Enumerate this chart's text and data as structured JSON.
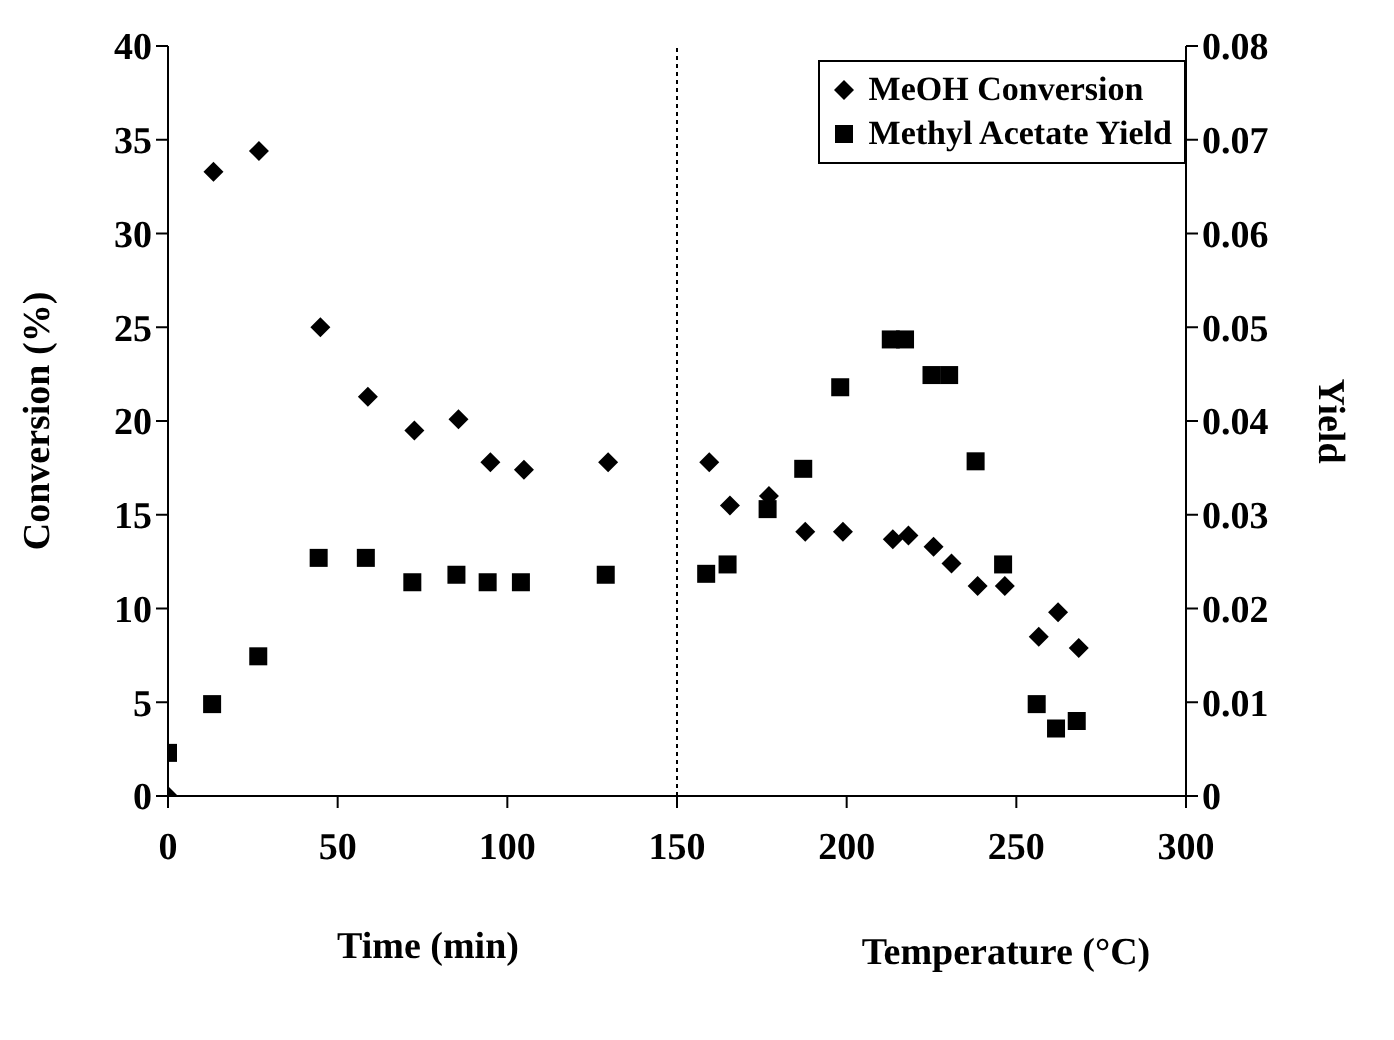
{
  "chart_data": {
    "type": "scatter",
    "xlabel": "Time (min)",
    "ylabel": "Conversion (%)",
    "y2label": "Yield",
    "annotations": [
      "Temperature (°C)"
    ],
    "xlim": [
      0,
      300
    ],
    "xticks": [
      0,
      50,
      100,
      150,
      200,
      250,
      300
    ],
    "ylim": [
      0,
      40
    ],
    "yticks": [
      0,
      5,
      10,
      15,
      20,
      25,
      30,
      35,
      40
    ],
    "y2lim": [
      0,
      0.08
    ],
    "y2ticks": [
      0,
      0.01,
      0.02,
      0.03,
      0.04,
      0.05,
      0.06,
      0.07,
      0.08
    ],
    "grid": false,
    "legend": "top right",
    "ref_lines": [
      {
        "axis": "x",
        "value": 150,
        "line_style": "dotted",
        "color": "#000000"
      }
    ],
    "series": [
      {
        "name": "MeOH Conversion",
        "color": "#000000",
        "marker": "diamond",
        "x": [
          0,
          13.4,
          26.8,
          44.9,
          58.9,
          72.6,
          85.6,
          95,
          104.9,
          129.7,
          159.5,
          165.6,
          177.1,
          187.8,
          198.9,
          213.6,
          218.2,
          225.6,
          230.9,
          238.6,
          246.6,
          256.6,
          262.3,
          268.4
        ],
        "values": [
          0,
          33.3,
          34.4,
          25.0,
          21.3,
          19.5,
          20.1,
          17.8,
          17.4,
          17.8,
          17.8,
          15.5,
          16.0,
          14.1,
          14.1,
          13.7,
          13.9,
          13.3,
          12.4,
          11.2,
          11.2,
          8.5,
          9.8,
          7.9
        ]
      },
      {
        "name": "Methyl Acetate Yield",
        "color": "#000000",
        "marker": "square",
        "axis": "y2",
        "x": [
          0,
          13.0,
          26.6,
          44.4,
          58.3,
          72.0,
          85.0,
          94.2,
          104,
          129,
          158.6,
          164.9,
          176.7,
          187.2,
          198.1,
          213,
          217.2,
          225,
          230.2,
          238,
          246.1,
          256,
          261.7,
          267.8
        ],
        "values": [
          0.0046,
          0.0098,
          0.0149,
          0.0254,
          0.0254,
          0.0228,
          0.0236,
          0.0228,
          0.0228,
          0.0236,
          0.0237,
          0.0247,
          0.0306,
          0.0349,
          0.0436,
          0.0487,
          0.0487,
          0.0449,
          0.0449,
          0.0357,
          0.0247,
          0.0098,
          0.0072,
          0.008
        ]
      }
    ]
  }
}
